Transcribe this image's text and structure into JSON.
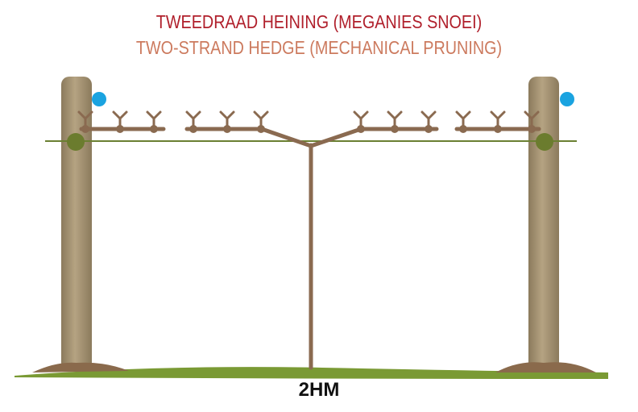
{
  "title_af": "TWEEDRAAD HEINING (MEGANIES SNOEI)",
  "title_en": "TWO-STRAND HEDGE (MECHANICAL PRUNING)",
  "spacing_label": "2HM",
  "colors": {
    "title_af": "#b01f2b",
    "title_en": "#cc7a5e",
    "post": "#a08e6f",
    "vine": "#8a6a50",
    "wire": "#6b8032",
    "ground": "#7a9a34",
    "ground_mound": "#8a6a4c",
    "top_wire_clip": "#1aa3e0"
  }
}
